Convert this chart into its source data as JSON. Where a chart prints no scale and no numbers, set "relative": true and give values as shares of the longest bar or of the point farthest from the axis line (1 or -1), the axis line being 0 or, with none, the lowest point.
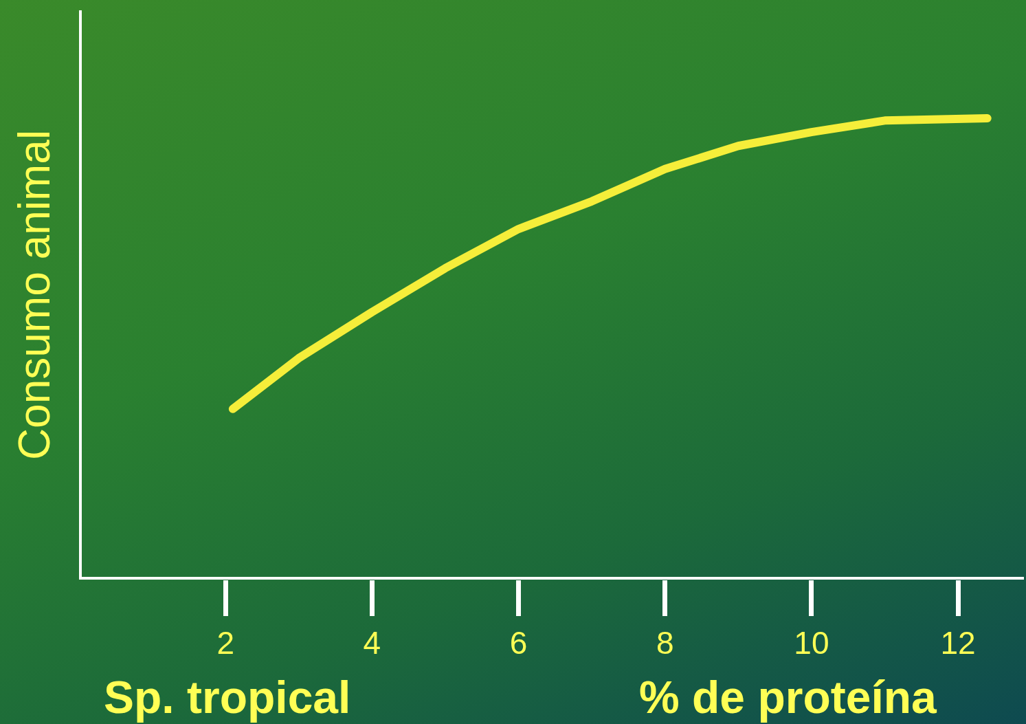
{
  "chart_data": {
    "type": "line",
    "relative": true,
    "xlabel": "% de proteína",
    "ylabel": "Consumo animal",
    "annotations": [
      "Sp. tropical"
    ],
    "x": [
      2.1,
      3,
      4,
      5,
      6,
      7,
      8,
      9,
      10,
      11,
      12.4
    ],
    "series": [
      {
        "color": "#f5ee3a",
        "values": [
          0.37,
          0.48,
          0.58,
          0.675,
          0.76,
          0.82,
          0.89,
          0.94,
          0.97,
          0.995,
          1
        ]
      }
    ],
    "xlim": [
      0,
      12.9
    ],
    "xticks": [
      2,
      4,
      6,
      8,
      10,
      12
    ],
    "grid": false,
    "marker": "none",
    "line_style": "solid"
  }
}
